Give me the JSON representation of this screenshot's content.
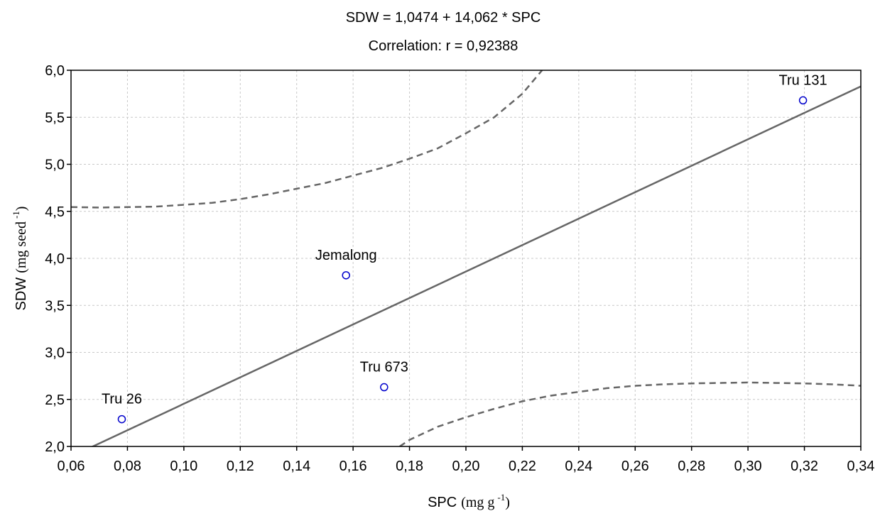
{
  "chart_data": {
    "type": "scatter",
    "title": "SDW = 1,0474 + 14,062 * SPC",
    "subtitle": "Correlation: r = 0,92388",
    "xlabel": {
      "main": "SPC",
      "unit_prefix": "(mg g",
      "unit_sup": "-1",
      "unit_suffix": ")"
    },
    "ylabel": {
      "main": "SDW",
      "unit_prefix": "(mg seed",
      "unit_sup": "-1",
      "unit_suffix": ")"
    },
    "xlim": [
      0.06,
      0.34
    ],
    "ylim": [
      2.0,
      6.0
    ],
    "grid": true,
    "x_ticks": [
      0.06,
      0.08,
      0.1,
      0.12,
      0.14,
      0.16,
      0.18,
      0.2,
      0.22,
      0.24,
      0.26,
      0.28,
      0.3,
      0.32,
      0.34
    ],
    "x_tick_labels": [
      "0,06",
      "0,08",
      "0,10",
      "0,12",
      "0,14",
      "0,16",
      "0,18",
      "0,20",
      "0,22",
      "0,24",
      "0,26",
      "0,28",
      "0,30",
      "0,32",
      "0,34"
    ],
    "y_ticks": [
      2.0,
      2.5,
      3.0,
      3.5,
      4.0,
      4.5,
      5.0,
      5.5,
      6.0
    ],
    "y_tick_labels": [
      "2,0",
      "2,5",
      "3,0",
      "3,5",
      "4,0",
      "4,5",
      "5,0",
      "5,5",
      "6,0"
    ],
    "points": [
      {
        "label": "Tru 26",
        "x": 0.078,
        "y": 2.29
      },
      {
        "label": "Jemalong",
        "x": 0.1575,
        "y": 3.82
      },
      {
        "label": "Tru 673",
        "x": 0.171,
        "y": 2.63
      },
      {
        "label": "Tru 131",
        "x": 0.3195,
        "y": 5.68
      }
    ],
    "regression": {
      "intercept": 1.0474,
      "slope": 14.062
    },
    "confidence_band": {
      "upper": [
        [
          0.06,
          4.545
        ],
        [
          0.07,
          4.54
        ],
        [
          0.08,
          4.545
        ],
        [
          0.09,
          4.55
        ],
        [
          0.1,
          4.57
        ],
        [
          0.11,
          4.59
        ],
        [
          0.12,
          4.63
        ],
        [
          0.13,
          4.68
        ],
        [
          0.14,
          4.74
        ],
        [
          0.15,
          4.8
        ],
        [
          0.16,
          4.88
        ],
        [
          0.17,
          4.96
        ],
        [
          0.18,
          5.06
        ],
        [
          0.19,
          5.17
        ],
        [
          0.2,
          5.33
        ],
        [
          0.21,
          5.5
        ],
        [
          0.22,
          5.75
        ],
        [
          0.227,
          6.0
        ]
      ],
      "lower": [
        [
          0.1765,
          2.0
        ],
        [
          0.18,
          2.07
        ],
        [
          0.19,
          2.21
        ],
        [
          0.2,
          2.31
        ],
        [
          0.21,
          2.4
        ],
        [
          0.22,
          2.48
        ],
        [
          0.23,
          2.54
        ],
        [
          0.24,
          2.58
        ],
        [
          0.25,
          2.62
        ],
        [
          0.26,
          2.645
        ],
        [
          0.27,
          2.66
        ],
        [
          0.28,
          2.67
        ],
        [
          0.29,
          2.675
        ],
        [
          0.3,
          2.68
        ],
        [
          0.31,
          2.675
        ],
        [
          0.32,
          2.67
        ],
        [
          0.33,
          2.66
        ],
        [
          0.34,
          2.645
        ]
      ]
    },
    "colors": {
      "point": "#0000cc",
      "line": "#666666",
      "grid": "#c8c8c8",
      "axis": "#000000"
    }
  }
}
